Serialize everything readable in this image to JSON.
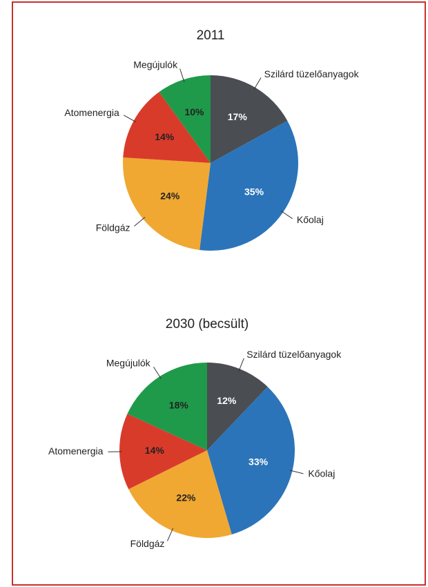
{
  "chart_data": [
    {
      "type": "pie",
      "title": "2011",
      "categories": [
        "Szilárd tüzelőanyagok",
        "Kőolaj",
        "Földgáz",
        "Atomenergia",
        "Megújulók"
      ],
      "values": [
        17,
        35,
        24,
        14,
        10
      ],
      "value_labels": [
        "17%",
        "35%",
        "24%",
        "14%",
        "10%"
      ],
      "colors": [
        "#4a4d52",
        "#2b74b9",
        "#f0a832",
        "#d93b2b",
        "#1f9a4a"
      ],
      "value_label_colors": [
        "#ffffff",
        "#ffffff",
        "#222222",
        "#222222",
        "#222222"
      ]
    },
    {
      "type": "pie",
      "title": "2030 (becsült)",
      "categories": [
        "Szilárd tüzelőanyagok",
        "Kőolaj",
        "Földgáz",
        "Atomenergia",
        "Megújulók"
      ],
      "values": [
        12,
        33,
        22,
        14,
        18
      ],
      "value_labels": [
        "12%",
        "33%",
        "22%",
        "14%",
        "18%"
      ],
      "colors": [
        "#4a4d52",
        "#2b74b9",
        "#f0a832",
        "#d93b2b",
        "#1f9a4a"
      ],
      "value_label_colors": [
        "#ffffff",
        "#ffffff",
        "#222222",
        "#222222",
        "#222222"
      ]
    }
  ]
}
